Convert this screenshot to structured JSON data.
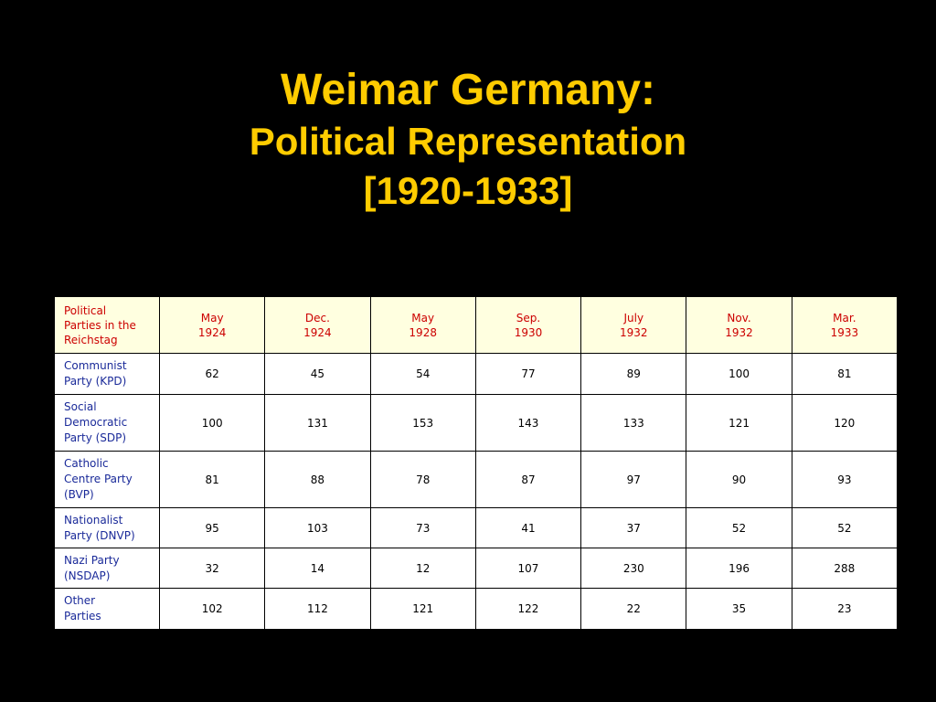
{
  "title": {
    "line1": "Weimar Germany:",
    "line2": "Political Representation",
    "line3": "[1920-1933]"
  },
  "table": {
    "corner_header": [
      "Political",
      "Parties in the",
      "Reichstag"
    ],
    "columns": [
      {
        "month": "May",
        "year": "1924"
      },
      {
        "month": "Dec.",
        "year": "1924"
      },
      {
        "month": "May",
        "year": "1928"
      },
      {
        "month": "Sep.",
        "year": "1930"
      },
      {
        "month": "July",
        "year": "1932"
      },
      {
        "month": "Nov.",
        "year": "1932"
      },
      {
        "month": "Mar.",
        "year": "1933"
      }
    ],
    "rows": [
      {
        "party": [
          "Communist",
          "Party (KPD)"
        ],
        "values": [
          "62",
          "45",
          "54",
          "77",
          "89",
          "100",
          "81"
        ]
      },
      {
        "party": [
          "Social",
          "Democratic",
          "Party (SDP)"
        ],
        "values": [
          "100",
          "131",
          "153",
          "143",
          "133",
          "121",
          "120"
        ]
      },
      {
        "party": [
          "Catholic",
          "Centre Party",
          "(BVP)"
        ],
        "values": [
          "81",
          "88",
          "78",
          "87",
          "97",
          "90",
          "93"
        ]
      },
      {
        "party": [
          "Nationalist",
          "Party (DNVP)"
        ],
        "values": [
          "95",
          "103",
          "73",
          "41",
          "37",
          "52",
          "52"
        ]
      },
      {
        "party": [
          "Nazi Party",
          "(NSDAP)"
        ],
        "values": [
          "32",
          "14",
          "12",
          "107",
          "230",
          "196",
          "288"
        ]
      },
      {
        "party": [
          "Other",
          "Parties"
        ],
        "values": [
          "102",
          "112",
          "121",
          "122",
          "22",
          "35",
          "23"
        ]
      }
    ],
    "colors": {
      "header_bg": "#FFFFE0",
      "header_text": "#CC0000",
      "party_text": "#1A2A99",
      "title": "#FFCC00"
    }
  }
}
